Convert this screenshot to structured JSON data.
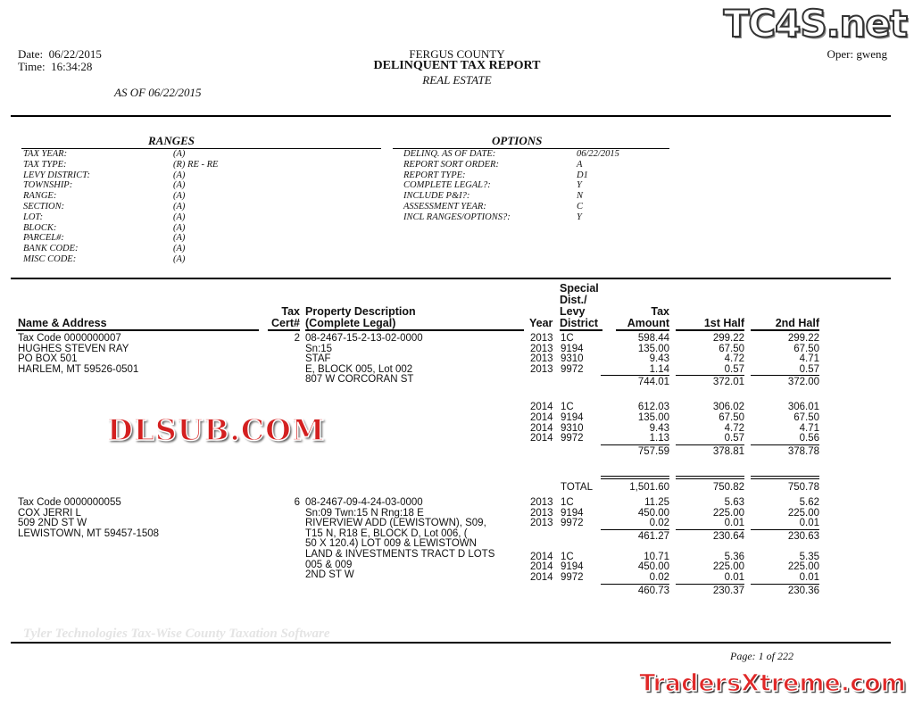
{
  "header": {
    "date_label": "Date:",
    "date": "06/22/2015",
    "time_label": "Time:",
    "time": "16:34:28",
    "county": "FERGUS COUNTY",
    "title": "DELINQUENT TAX REPORT",
    "subtitle": "REAL ESTATE",
    "as_of": "AS OF 06/22/2015",
    "operator": "Oper: gweng"
  },
  "ranges": {
    "title": "RANGES",
    "items": [
      {
        "label": "TAX YEAR:",
        "value": "(A)"
      },
      {
        "label": "TAX TYPE:",
        "value": "(R) RE - RE"
      },
      {
        "label": "LEVY DISTRICT:",
        "value": "(A)"
      },
      {
        "label": "TOWNSHIP:",
        "value": "(A)"
      },
      {
        "label": "RANGE:",
        "value": "(A)"
      },
      {
        "label": "SECTION:",
        "value": "(A)"
      },
      {
        "label": "LOT:",
        "value": "(A)"
      },
      {
        "label": "BLOCK:",
        "value": "(A)"
      },
      {
        "label": "PARCEL#:",
        "value": "(A)"
      },
      {
        "label": "BANK CODE:",
        "value": "(A)"
      },
      {
        "label": "MISC CODE:",
        "value": "(A)"
      }
    ]
  },
  "options": {
    "title": "OPTIONS",
    "items": [
      {
        "label": "DELINQ. AS OF DATE:",
        "value": "06/22/2015"
      },
      {
        "label": "REPORT SORT ORDER:",
        "value": "A"
      },
      {
        "label": "REPORT TYPE:",
        "value": "D1"
      },
      {
        "label": "COMPLETE LEGAL?:",
        "value": "Y"
      },
      {
        "label": "INCLUDE P&I?:",
        "value": "N"
      },
      {
        "label": "ASSESSMENT YEAR:",
        "value": "C"
      },
      {
        "label": "INCL RANGES/OPTIONS?:",
        "value": "Y"
      }
    ]
  },
  "columns": {
    "name": "Name & Address",
    "cert_1": "Tax",
    "cert_2": "Cert#",
    "desc_1": "Property Description",
    "desc_2": "(Complete Legal)",
    "year": "Year",
    "levy_1": "Special Dist./",
    "levy_2": "Levy District",
    "tax": "Tax Amount",
    "first": "1st Half",
    "second": "2nd Half"
  },
  "records": [
    {
      "address": [
        "Tax Code 0000000007",
        "HUGHES STEVEN RAY",
        "PO BOX 501",
        "HARLEM, MT 59526-0501"
      ],
      "cert": "2",
      "legal": [
        "08-2467-15-2-13-02-0000",
        "Sn:15",
        "STAF",
        "E, BLOCK 005, Lot 002",
        "807 W CORCORAN ST"
      ],
      "groups": [
        {
          "rows": [
            [
              "2013",
              "1C",
              "598.44",
              "299.22",
              "299.22"
            ],
            [
              "2013",
              "9194",
              "135.00",
              "67.50",
              "67.50"
            ],
            [
              "2013",
              "9310",
              "9.43",
              "4.72",
              "4.71"
            ],
            [
              "2013",
              "9972",
              "1.14",
              "0.57",
              "0.57"
            ]
          ],
          "subtotal": [
            "744.01",
            "372.01",
            "372.00"
          ]
        },
        {
          "rows": [
            [
              "2014",
              "1C",
              "612.03",
              "306.02",
              "306.01"
            ],
            [
              "2014",
              "9194",
              "135.00",
              "67.50",
              "67.50"
            ],
            [
              "2014",
              "9310",
              "9.43",
              "4.72",
              "4.71"
            ],
            [
              "2014",
              "9972",
              "1.13",
              "0.57",
              "0.56"
            ]
          ],
          "subtotal": [
            "757.59",
            "378.81",
            "378.78"
          ]
        }
      ],
      "total": {
        "label": "TOTAL",
        "values": [
          "1,501.60",
          "750.82",
          "750.78"
        ]
      }
    },
    {
      "address": [
        "Tax Code 0000000055",
        "COX JERRI L",
        "509 2ND ST W",
        "LEWISTOWN, MT 59457-1508"
      ],
      "cert": "6",
      "legal": [
        "08-2467-09-4-24-03-0000",
        "Sn:09 Twn:15   N Rng:18   E",
        "RIVERVIEW ADD (LEWISTOWN), S09,",
        "T15 N, R18 E, BLOCK D, Lot 006, (",
        "50 X 120.4) LOT 009 & LEWISTOWN",
        "LAND & INVESTMENTS TRACT D LOTS",
        "005 & 009",
        "2ND ST W"
      ],
      "groups": [
        {
          "rows": [
            [
              "2013",
              "1C",
              "11.25",
              "5.63",
              "5.62"
            ],
            [
              "2013",
              "9194",
              "450.00",
              "225.00",
              "225.00"
            ],
            [
              "2013",
              "9972",
              "0.02",
              "0.01",
              "0.01"
            ]
          ],
          "subtotal": [
            "461.27",
            "230.64",
            "230.63"
          ]
        },
        {
          "rows": [
            [
              "2014",
              "1C",
              "10.71",
              "5.36",
              "5.35"
            ],
            [
              "2014",
              "9194",
              "450.00",
              "225.00",
              "225.00"
            ],
            [
              "2014",
              "9972",
              "0.02",
              "0.01",
              "0.01"
            ]
          ],
          "subtotal": [
            "460.73",
            "230.37",
            "230.36"
          ]
        }
      ]
    }
  ],
  "footer": {
    "software": "Tyler Technologies Tax-Wise County Taxation Software",
    "page": "Page: 1 of 222"
  },
  "watermarks": {
    "top_right": "TC4S.net",
    "center": "DLSUB.COM",
    "bottom": "TradersXtreme.com",
    "center_color": "#d42020",
    "bottom_color": "#e02828"
  }
}
